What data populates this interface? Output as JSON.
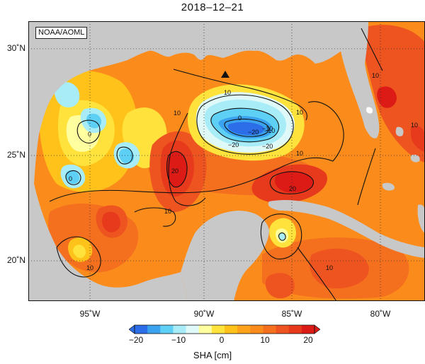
{
  "title": "2018–12–21",
  "credit": "NOAA/AOML",
  "x_ticks": [
    "95˚W",
    "90˚W",
    "85˚W",
    "80˚W"
  ],
  "y_ticks": [
    "30˚N",
    "25˚N",
    "20˚N"
  ],
  "colorbar": {
    "ticks": [
      "−20",
      "−10",
      "0",
      "10",
      "20"
    ],
    "label": "SHA [cm]",
    "colors": [
      "#2c6ee8",
      "#3ba2f0",
      "#5fd0f5",
      "#a8ecf7",
      "#dff8f8",
      "#ffffa0",
      "#ffe23c",
      "#ffc21a",
      "#fda21a",
      "#fb8c1c",
      "#f4701e",
      "#ee5420",
      "#e73a1c",
      "#dc1a16"
    ]
  },
  "contour_labels": [
    "10",
    "0",
    "10",
    "−10",
    "−20",
    "0",
    "10",
    "−20",
    "10",
    "20",
    "20",
    "0",
    "−10",
    "−20",
    "10",
    "10",
    "10",
    "10",
    "10"
  ],
  "colors": {
    "land": "#c8c8c8",
    "ocean_base": "#fb8c1c",
    "ocean_warm": "#ee5420",
    "hot": "#dc1a16",
    "cold_core": "#2c6ee8",
    "cold_mid": "#3ba2f0",
    "cold_edge": "#a8ecf7",
    "yellow": "#ffe23c"
  },
  "symbols": [
    "triangle-marker"
  ]
}
